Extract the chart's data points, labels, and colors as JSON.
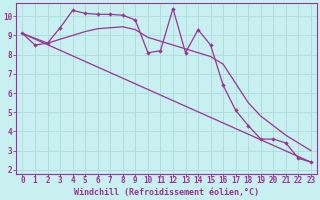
{
  "bg_color": "#c8f0f0",
  "line_color": "#993399",
  "grid_color": "#b0dede",
  "axis_color": "#993399",
  "xlabel": "Windchill (Refroidissement éolien,°C)",
  "xlim": [
    -0.5,
    23.5
  ],
  "ylim": [
    1.8,
    10.7
  ],
  "yticks": [
    2,
    3,
    4,
    5,
    6,
    7,
    8,
    9,
    10
  ],
  "xticks": [
    0,
    1,
    2,
    3,
    4,
    5,
    6,
    7,
    8,
    9,
    10,
    11,
    12,
    13,
    14,
    15,
    16,
    17,
    18,
    19,
    20,
    21,
    22,
    23
  ],
  "line1_x": [
    0,
    1,
    2,
    3,
    4,
    5,
    6,
    7,
    8,
    9,
    10,
    11,
    12,
    13,
    14,
    15,
    16,
    17,
    18,
    19,
    20,
    21,
    22,
    23
  ],
  "line1_y": [
    9.1,
    8.5,
    8.6,
    9.4,
    10.3,
    10.15,
    10.1,
    10.1,
    10.05,
    9.8,
    8.1,
    8.2,
    10.4,
    8.1,
    9.3,
    8.5,
    6.4,
    5.1,
    4.3,
    3.6,
    3.6,
    3.4,
    2.6,
    2.4
  ],
  "line2_x": [
    0,
    2,
    3,
    4,
    5,
    6,
    7,
    8,
    9,
    10,
    11,
    12,
    13,
    14,
    15,
    16,
    17,
    18,
    19,
    20,
    21,
    22,
    23
  ],
  "line2_y": [
    9.1,
    8.6,
    8.8,
    9.0,
    9.2,
    9.35,
    9.4,
    9.45,
    9.3,
    8.9,
    8.7,
    8.5,
    8.3,
    8.1,
    7.9,
    7.5,
    6.5,
    5.5,
    4.8,
    4.3,
    3.8,
    3.4,
    3.0
  ],
  "line3_x": [
    0,
    23
  ],
  "line3_y": [
    9.1,
    2.4
  ],
  "tick_fontsize": 5.5,
  "xlabel_fontsize": 6.0
}
